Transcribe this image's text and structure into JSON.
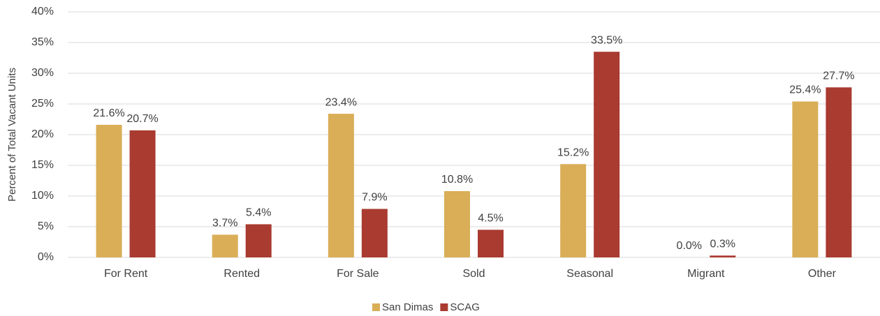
{
  "chart_data": {
    "type": "bar",
    "y_label": "Percent of Total Vacant Units",
    "categories": [
      "For Rent",
      "Rented",
      "For Sale",
      "Sold",
      "Seasonal",
      "Migrant",
      "Other"
    ],
    "series": [
      {
        "name": "San Dimas",
        "color": "#d9ae57",
        "values": [
          21.6,
          3.7,
          23.4,
          10.8,
          15.2,
          0.0,
          25.4
        ],
        "value_labels": [
          "21.6%",
          "3.7%",
          "23.4%",
          "10.8%",
          "15.2%",
          "0.0%",
          "25.4%"
        ]
      },
      {
        "name": "SCAG",
        "color": "#a93b30",
        "values": [
          20.7,
          5.4,
          7.9,
          4.5,
          33.5,
          0.3,
          27.7
        ],
        "value_labels": [
          "20.7%",
          "5.4%",
          "7.9%",
          "4.5%",
          "33.5%",
          "0.3%",
          "27.7%"
        ]
      }
    ],
    "ylim": [
      0,
      40
    ],
    "yticks": [
      {
        "value": 0,
        "label": "0%"
      },
      {
        "value": 5,
        "label": "5%"
      },
      {
        "value": 10,
        "label": "10%"
      },
      {
        "value": 15,
        "label": "15%"
      },
      {
        "value": 20,
        "label": "20%"
      },
      {
        "value": 25,
        "label": "25%"
      },
      {
        "value": 30,
        "label": "30%"
      },
      {
        "value": 35,
        "label": "35%"
      },
      {
        "value": 40,
        "label": "40%"
      }
    ],
    "grid": true,
    "legend": "bottom"
  }
}
